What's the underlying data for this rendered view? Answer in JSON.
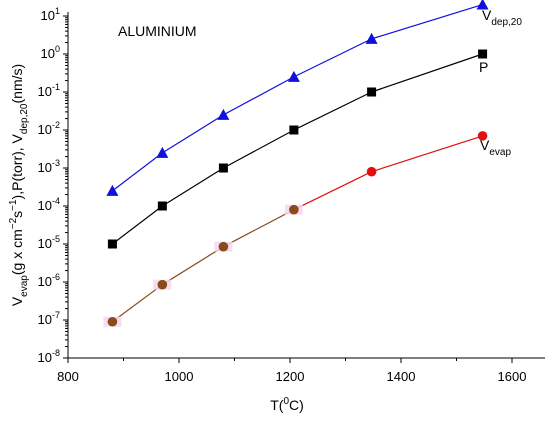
{
  "chart_data": {
    "type": "line",
    "title": "ALUMINIUM",
    "xlabel": {
      "main": "T(",
      "sup": "0",
      "tail": "C)"
    },
    "ylabel": {
      "p1": "V",
      "p1_sub": "evap",
      "p2": "(g x cm",
      "p2_sup": "−2",
      "p3": "s",
      "p3_sup": "−1",
      "p4": "),P(torr), V",
      "p4_sub": "dep,20",
      "p5": "(nm/s)"
    },
    "xlim": [
      800,
      1700
    ],
    "ylim_log10": [
      -8,
      1.3
    ],
    "y_scale": "log",
    "x_ticks": [
      800,
      1000,
      1200,
      1400,
      1600
    ],
    "y_tick_exponents": [
      -8,
      -7,
      -6,
      -5,
      -4,
      -3,
      -2,
      -1,
      0,
      1
    ],
    "y_tick_base": "10",
    "x": [
      880,
      970,
      1080,
      1207,
      1347,
      1547
    ],
    "series": [
      {
        "name": "V_dep,20",
        "label_main": "V",
        "label_sub": "dep,20",
        "color": "#1010dd",
        "marker": "triangle",
        "values": [
          0.00025,
          0.0025,
          0.025,
          0.25,
          2.5,
          20
        ]
      },
      {
        "name": "P",
        "label_main": "P",
        "label_sub": "",
        "color": "#000000",
        "marker": "square",
        "values": [
          1e-05,
          0.0001,
          0.001,
          0.01,
          0.1,
          1
        ]
      },
      {
        "name": "V_evap",
        "label_main": "V",
        "label_sub": "evap",
        "color": "#e01010",
        "marker": "circle",
        "values": [
          9e-08,
          8.5e-07,
          8.5e-06,
          8e-05,
          0.0008,
          0.007
        ]
      }
    ],
    "highlight_color": "#8a4a1a",
    "highlight_points": 4,
    "grid": false
  }
}
